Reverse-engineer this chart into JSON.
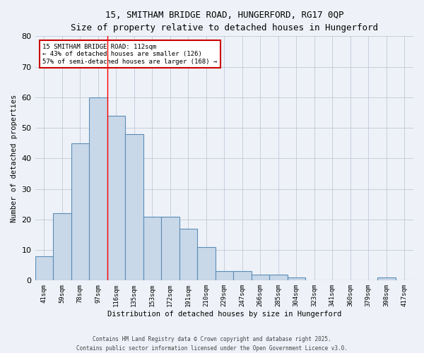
{
  "title_line1": "15, SMITHAM BRIDGE ROAD, HUNGERFORD, RG17 0QP",
  "title_line2": "Size of property relative to detached houses in Hungerford",
  "xlabel": "Distribution of detached houses by size in Hungerford",
  "ylabel": "Number of detached properties",
  "categories": [
    "41sqm",
    "59sqm",
    "78sqm",
    "97sqm",
    "116sqm",
    "135sqm",
    "153sqm",
    "172sqm",
    "191sqm",
    "210sqm",
    "229sqm",
    "247sqm",
    "266sqm",
    "285sqm",
    "304sqm",
    "323sqm",
    "341sqm",
    "360sqm",
    "379sqm",
    "398sqm",
    "417sqm"
  ],
  "values": [
    8,
    22,
    45,
    60,
    54,
    48,
    21,
    21,
    17,
    11,
    3,
    3,
    2,
    2,
    1,
    0,
    0,
    0,
    0,
    1,
    0
  ],
  "bar_color": "#c8d8e8",
  "bar_edge_color": "#5b8db8",
  "bar_linewidth": 0.8,
  "grid_color": "#c0c8d8",
  "background_color": "#eef2f8",
  "ylim": [
    0,
    80
  ],
  "yticks": [
    0,
    10,
    20,
    30,
    40,
    50,
    60,
    70,
    80
  ],
  "red_line_x": 3.5,
  "annotation_text": "15 SMITHAM BRIDGE ROAD: 112sqm\n← 43% of detached houses are smaller (126)\n57% of semi-detached houses are larger (168) →",
  "annotation_box_color": "#ffffff",
  "annotation_box_edge": "#cc0000",
  "footer_line1": "Contains HM Land Registry data © Crown copyright and database right 2025.",
  "footer_line2": "Contains public sector information licensed under the Open Government Licence v3.0."
}
